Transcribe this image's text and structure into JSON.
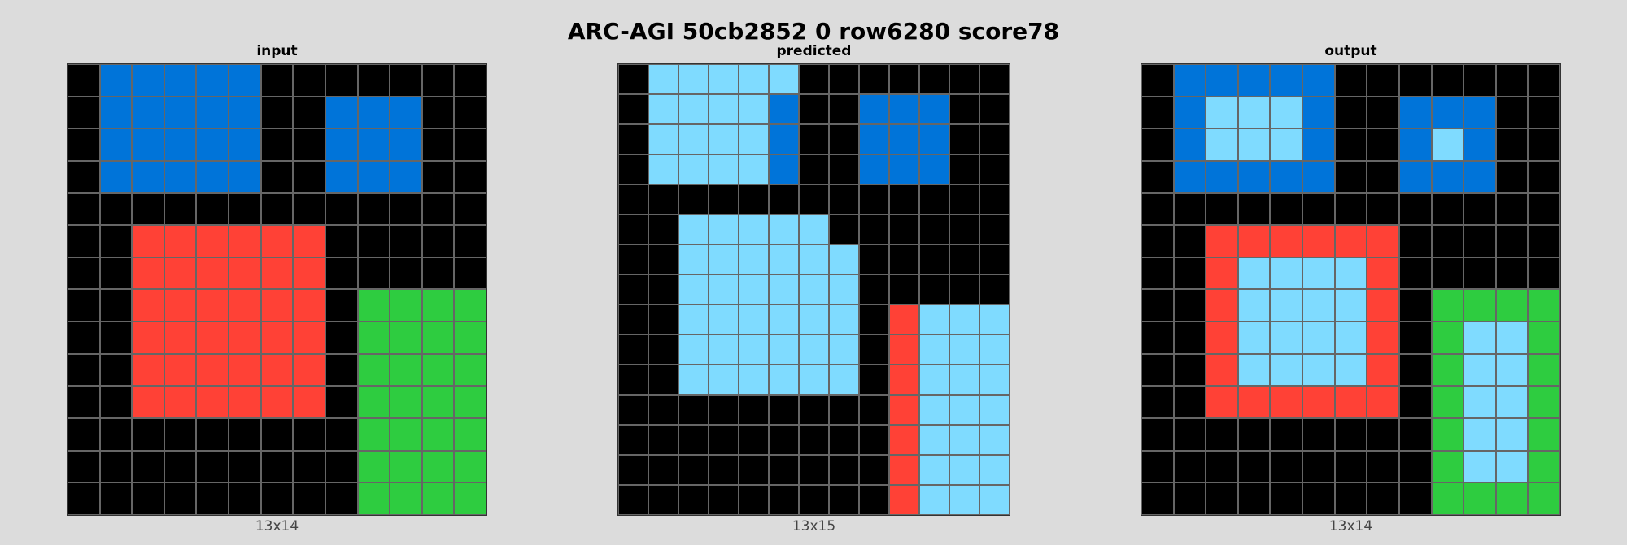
{
  "title": "ARC-AGI 50cb2852 0 row6280 score78",
  "palette": {
    "0": "#000000",
    "1": "#0074d9",
    "2": "#ff4136",
    "3": "#2ecc40",
    "8": "#7fdbff"
  },
  "panels": [
    {
      "label": "input",
      "dims": "13x14",
      "grid": [
        [
          0,
          1,
          1,
          1,
          1,
          1,
          0,
          0,
          0,
          0,
          0,
          0,
          0
        ],
        [
          0,
          1,
          1,
          1,
          1,
          1,
          0,
          0,
          1,
          1,
          1,
          0,
          0
        ],
        [
          0,
          1,
          1,
          1,
          1,
          1,
          0,
          0,
          1,
          1,
          1,
          0,
          0
        ],
        [
          0,
          1,
          1,
          1,
          1,
          1,
          0,
          0,
          1,
          1,
          1,
          0,
          0
        ],
        [
          0,
          0,
          0,
          0,
          0,
          0,
          0,
          0,
          0,
          0,
          0,
          0,
          0
        ],
        [
          0,
          0,
          2,
          2,
          2,
          2,
          2,
          2,
          0,
          0,
          0,
          0,
          0
        ],
        [
          0,
          0,
          2,
          2,
          2,
          2,
          2,
          2,
          0,
          0,
          0,
          0,
          0
        ],
        [
          0,
          0,
          2,
          2,
          2,
          2,
          2,
          2,
          0,
          3,
          3,
          3,
          3
        ],
        [
          0,
          0,
          2,
          2,
          2,
          2,
          2,
          2,
          0,
          3,
          3,
          3,
          3
        ],
        [
          0,
          0,
          2,
          2,
          2,
          2,
          2,
          2,
          0,
          3,
          3,
          3,
          3
        ],
        [
          0,
          0,
          2,
          2,
          2,
          2,
          2,
          2,
          0,
          3,
          3,
          3,
          3
        ],
        [
          0,
          0,
          0,
          0,
          0,
          0,
          0,
          0,
          0,
          3,
          3,
          3,
          3
        ],
        [
          0,
          0,
          0,
          0,
          0,
          0,
          0,
          0,
          0,
          3,
          3,
          3,
          3
        ],
        [
          0,
          0,
          0,
          0,
          0,
          0,
          0,
          0,
          0,
          3,
          3,
          3,
          3
        ]
      ]
    },
    {
      "label": "predicted",
      "dims": "13x15",
      "grid": [
        [
          0,
          8,
          8,
          8,
          8,
          8,
          0,
          0,
          0,
          0,
          0,
          0,
          0
        ],
        [
          0,
          8,
          8,
          8,
          8,
          1,
          0,
          0,
          1,
          1,
          1,
          0,
          0
        ],
        [
          0,
          8,
          8,
          8,
          8,
          1,
          0,
          0,
          1,
          1,
          1,
          0,
          0
        ],
        [
          0,
          8,
          8,
          8,
          8,
          1,
          0,
          0,
          1,
          1,
          1,
          0,
          0
        ],
        [
          0,
          0,
          0,
          0,
          0,
          0,
          0,
          0,
          0,
          0,
          0,
          0,
          0
        ],
        [
          0,
          0,
          8,
          8,
          8,
          8,
          8,
          0,
          0,
          0,
          0,
          0,
          0
        ],
        [
          0,
          0,
          8,
          8,
          8,
          8,
          8,
          8,
          0,
          0,
          0,
          0,
          0
        ],
        [
          0,
          0,
          8,
          8,
          8,
          8,
          8,
          8,
          0,
          0,
          0,
          0,
          0
        ],
        [
          0,
          0,
          8,
          8,
          8,
          8,
          8,
          8,
          0,
          2,
          8,
          8,
          8
        ],
        [
          0,
          0,
          8,
          8,
          8,
          8,
          8,
          8,
          0,
          2,
          8,
          8,
          8
        ],
        [
          0,
          0,
          8,
          8,
          8,
          8,
          8,
          8,
          0,
          2,
          8,
          8,
          8
        ],
        [
          0,
          0,
          0,
          0,
          0,
          0,
          0,
          0,
          0,
          2,
          8,
          8,
          8
        ],
        [
          0,
          0,
          0,
          0,
          0,
          0,
          0,
          0,
          0,
          2,
          8,
          8,
          8
        ],
        [
          0,
          0,
          0,
          0,
          0,
          0,
          0,
          0,
          0,
          2,
          8,
          8,
          8
        ],
        [
          0,
          0,
          0,
          0,
          0,
          0,
          0,
          0,
          0,
          2,
          8,
          8,
          8
        ]
      ]
    },
    {
      "label": "output",
      "dims": "13x14",
      "grid": [
        [
          0,
          1,
          1,
          1,
          1,
          1,
          0,
          0,
          0,
          0,
          0,
          0,
          0
        ],
        [
          0,
          1,
          8,
          8,
          8,
          1,
          0,
          0,
          1,
          1,
          1,
          0,
          0
        ],
        [
          0,
          1,
          8,
          8,
          8,
          1,
          0,
          0,
          1,
          8,
          1,
          0,
          0
        ],
        [
          0,
          1,
          1,
          1,
          1,
          1,
          0,
          0,
          1,
          1,
          1,
          0,
          0
        ],
        [
          0,
          0,
          0,
          0,
          0,
          0,
          0,
          0,
          0,
          0,
          0,
          0,
          0
        ],
        [
          0,
          0,
          2,
          2,
          2,
          2,
          2,
          2,
          0,
          0,
          0,
          0,
          0
        ],
        [
          0,
          0,
          2,
          8,
          8,
          8,
          8,
          2,
          0,
          0,
          0,
          0,
          0
        ],
        [
          0,
          0,
          2,
          8,
          8,
          8,
          8,
          2,
          0,
          3,
          3,
          3,
          3
        ],
        [
          0,
          0,
          2,
          8,
          8,
          8,
          8,
          2,
          0,
          3,
          8,
          8,
          3
        ],
        [
          0,
          0,
          2,
          8,
          8,
          8,
          8,
          2,
          0,
          3,
          8,
          8,
          3
        ],
        [
          0,
          0,
          2,
          2,
          2,
          2,
          2,
          2,
          0,
          3,
          8,
          8,
          3
        ],
        [
          0,
          0,
          0,
          0,
          0,
          0,
          0,
          0,
          0,
          3,
          8,
          8,
          3
        ],
        [
          0,
          0,
          0,
          0,
          0,
          0,
          0,
          0,
          0,
          3,
          8,
          8,
          3
        ],
        [
          0,
          0,
          0,
          0,
          0,
          0,
          0,
          0,
          0,
          3,
          3,
          3,
          3
        ]
      ]
    }
  ]
}
